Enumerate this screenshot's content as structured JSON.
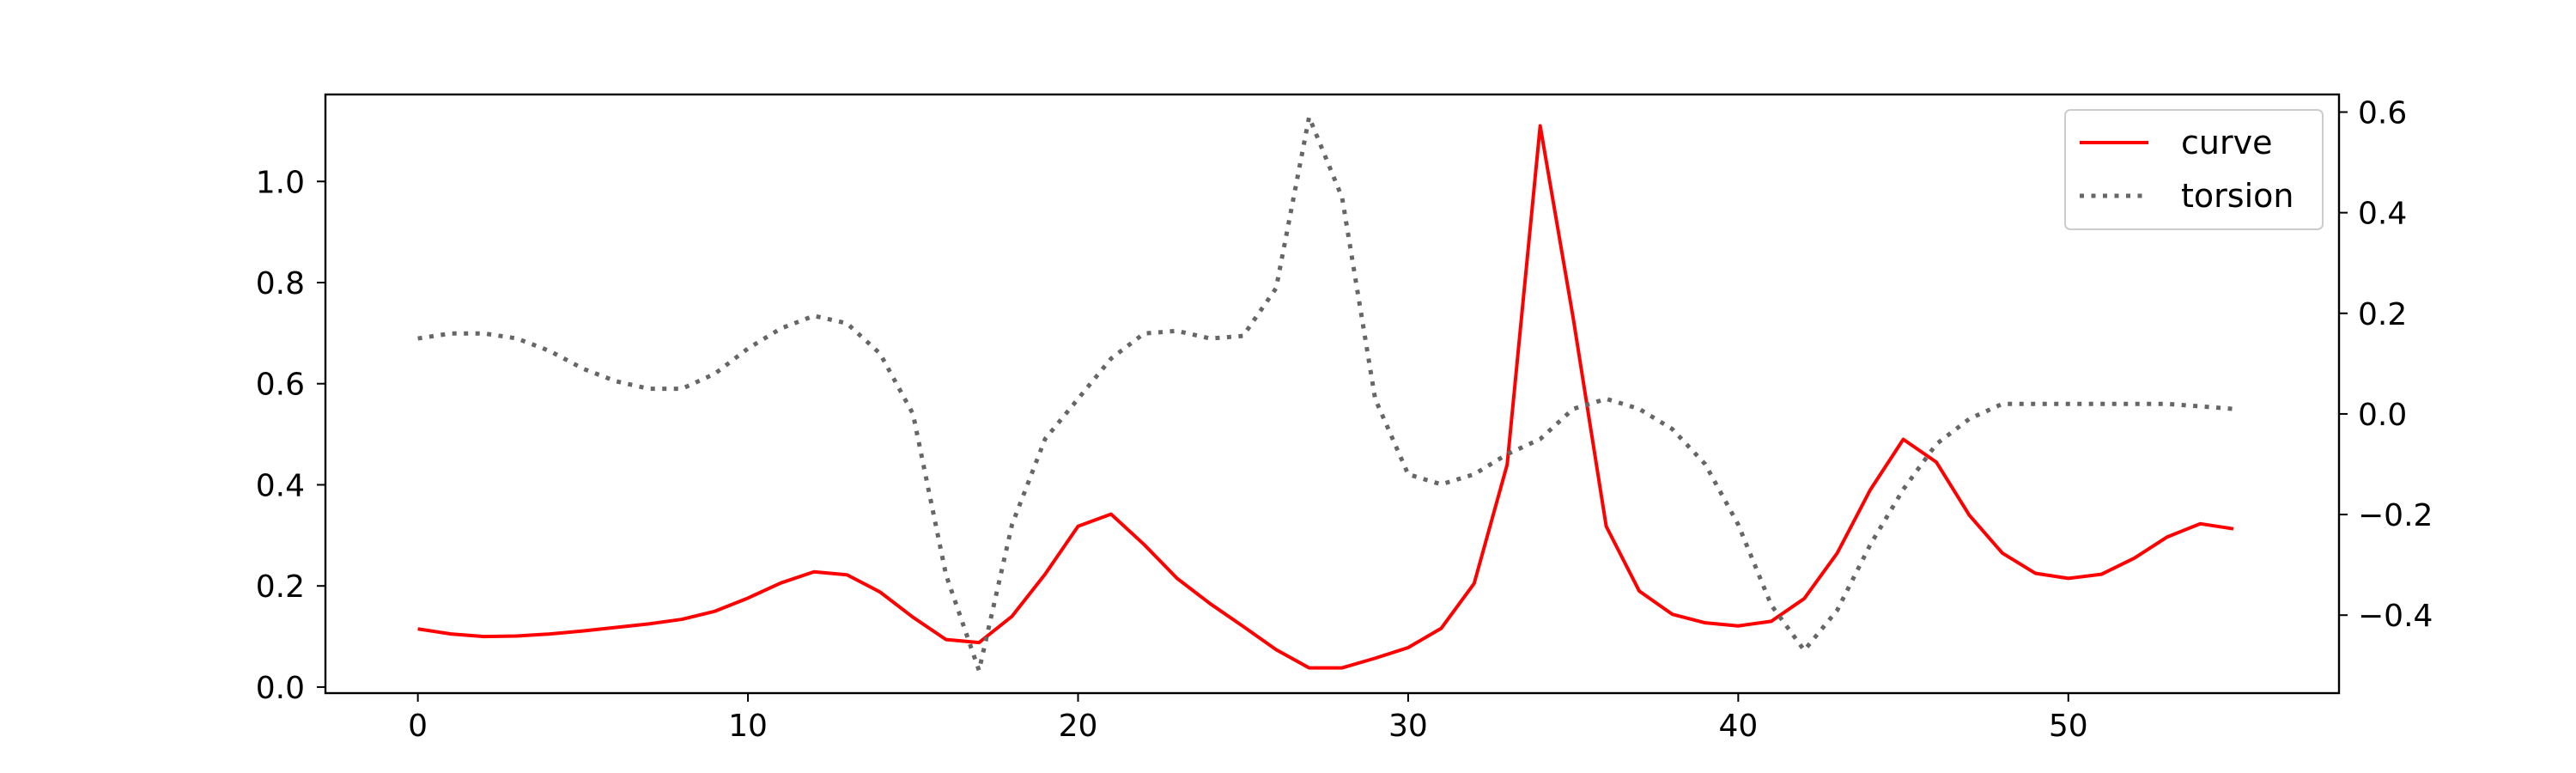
{
  "chart_data": {
    "type": "line",
    "title": "",
    "xlabel": "",
    "ylabel_left": "",
    "ylabel_right": "",
    "xlim": [
      -2.8,
      58.2
    ],
    "ylim_left": [
      -0.012,
      1.172
    ],
    "ylim_right": [
      -0.555,
      0.635
    ],
    "x_ticks": [
      0,
      10,
      20,
      30,
      40,
      50
    ],
    "y_ticks_left": [
      0.0,
      0.2,
      0.4,
      0.6,
      0.8,
      1.0
    ],
    "y_ticks_right": [
      -0.4,
      -0.2,
      0.0,
      0.2,
      0.4,
      0.6
    ],
    "tick_labels": {
      "x": [
        "0",
        "10",
        "20",
        "30",
        "40",
        "50"
      ],
      "y_left": [
        "0.0",
        "0.2",
        "0.4",
        "0.6",
        "0.8",
        "1.0"
      ],
      "y_right": [
        "−0.4",
        "−0.2",
        "0.0",
        "0.2",
        "0.4",
        "0.6"
      ]
    },
    "legend_position": "top-right",
    "grid": false,
    "x": [
      0,
      1,
      2,
      3,
      4,
      5,
      6,
      7,
      8,
      9,
      10,
      11,
      12,
      13,
      14,
      15,
      16,
      17,
      18,
      19,
      20,
      21,
      22,
      23,
      24,
      25,
      26,
      27,
      28,
      29,
      30,
      31,
      32,
      33,
      34,
      35,
      36,
      37,
      38,
      39,
      40,
      41,
      42,
      43,
      44,
      45,
      46,
      47,
      48,
      49,
      50,
      51,
      52,
      53,
      54,
      55
    ],
    "series": [
      {
        "name": "curve",
        "axis": "left",
        "color": "#ff0000",
        "style": "solid",
        "values": [
          0.115,
          0.105,
          0.1,
          0.101,
          0.105,
          0.111,
          0.118,
          0.125,
          0.134,
          0.15,
          0.176,
          0.206,
          0.228,
          0.222,
          0.188,
          0.138,
          0.094,
          0.088,
          0.14,
          0.223,
          0.318,
          0.342,
          0.282,
          0.215,
          0.165,
          0.12,
          0.074,
          0.038,
          0.038,
          0.057,
          0.078,
          0.116,
          0.205,
          0.44,
          1.11,
          0.73,
          0.318,
          0.19,
          0.144,
          0.127,
          0.121,
          0.13,
          0.175,
          0.265,
          0.39,
          0.49,
          0.445,
          0.34,
          0.265,
          0.225,
          0.215,
          0.223,
          0.255,
          0.297,
          0.323,
          0.313
        ]
      },
      {
        "name": "torsion",
        "axis": "right",
        "color": "#666666",
        "style": "dotted",
        "values": [
          0.15,
          0.16,
          0.16,
          0.15,
          0.125,
          0.09,
          0.065,
          0.05,
          0.05,
          0.08,
          0.13,
          0.17,
          0.195,
          0.18,
          0.12,
          0.0,
          -0.32,
          -0.51,
          -0.22,
          -0.05,
          0.03,
          0.11,
          0.16,
          0.165,
          0.15,
          0.155,
          0.25,
          0.59,
          0.43,
          0.03,
          -0.12,
          -0.14,
          -0.12,
          -0.08,
          -0.05,
          0.01,
          0.03,
          0.01,
          -0.03,
          -0.1,
          -0.22,
          -0.38,
          -0.47,
          -0.39,
          -0.26,
          -0.15,
          -0.06,
          -0.01,
          0.02,
          0.02,
          0.02,
          0.02,
          0.02,
          0.02,
          0.015,
          0.01
        ]
      }
    ]
  }
}
